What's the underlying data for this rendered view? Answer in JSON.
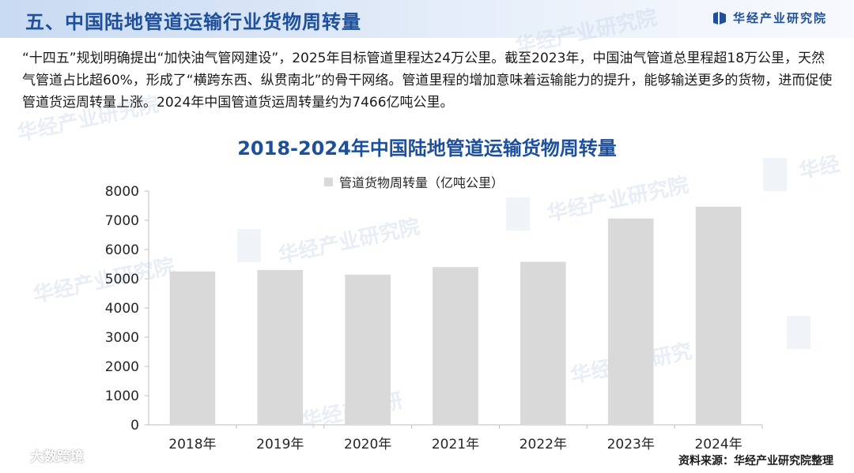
{
  "header": {
    "title": "五、中国陆地管道运输行业货物周转量",
    "brand": "华经产业研究院",
    "brand_color": "#1d4f9b"
  },
  "paragraph": "“十四五”规划明确提出“加快油气管网建设”，2025年目标管道里程达24万公里。截至2023年，中国油气管道总里程超18万公里，天然气管道占比超60%，形成了“横跨东西、纵贯南北”的骨干网络。管道里程的增加意味着运输能力的提升，能够输送更多的货物，进而促使管道货运周转量上涨。2024年中国管道货运周转量约为7466亿吨公里。",
  "watermark_text": "华经产业研究院",
  "chart_data": {
    "type": "bar",
    "title": "2018-2024年中国陆地管道运输货物周转量",
    "categories": [
      "2018年",
      "2019年",
      "2020年",
      "2021年",
      "2022年",
      "2023年",
      "2024年"
    ],
    "series": [
      {
        "name": "管道货物周转量（亿吨公里）",
        "values": [
          5250,
          5300,
          5140,
          5400,
          5580,
          7060,
          7466
        ],
        "color": "#d9d9d9"
      }
    ],
    "ylim": [
      0,
      8000
    ],
    "yticks": [
      "0",
      "1000",
      "2000",
      "3000",
      "4000",
      "5000",
      "6000",
      "7000",
      "8000"
    ],
    "legend_position": "top-center",
    "grid": false
  },
  "footer": {
    "source": "资料来源：华经产业研究院整理",
    "channel": "大数跨境"
  }
}
